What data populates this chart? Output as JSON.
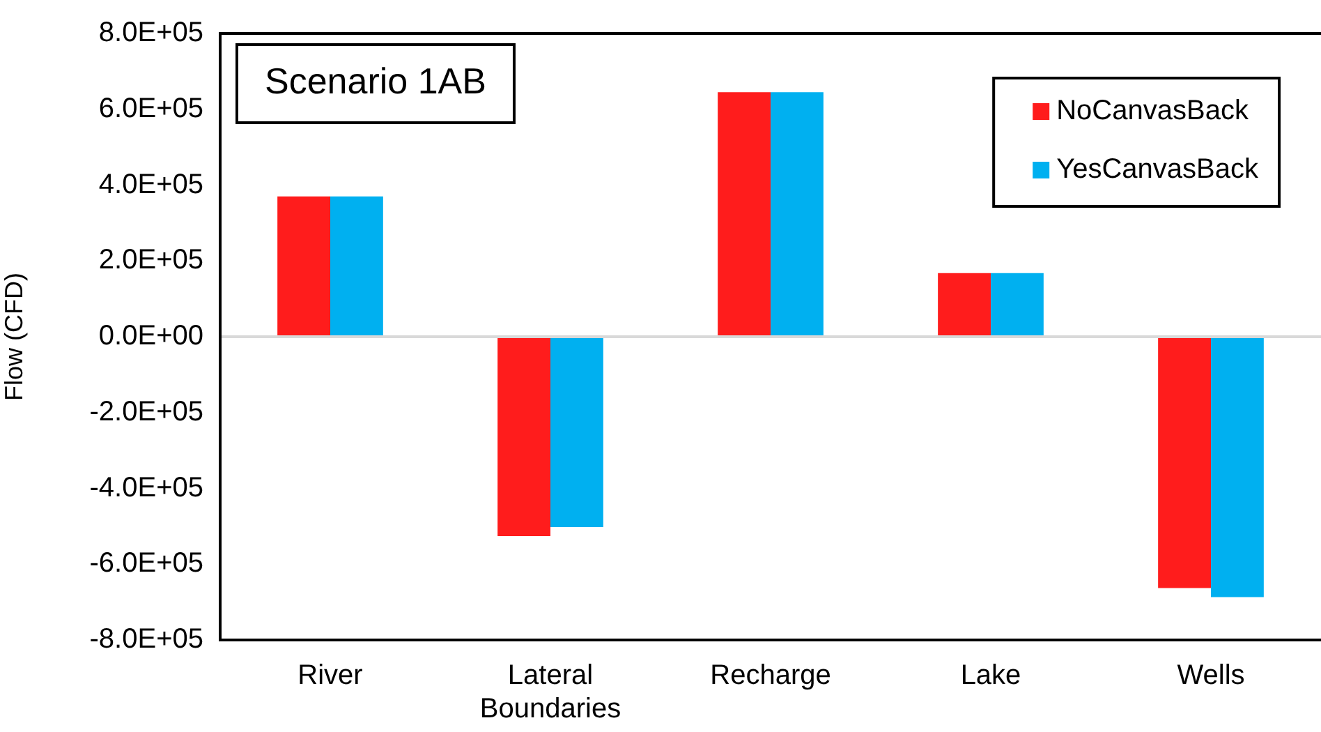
{
  "chart_data": {
    "type": "bar",
    "title": "Scenario 1AB",
    "ylabel": "Flow (CFD)",
    "categories": [
      "River",
      "Lateral Boundaries",
      "Recharge",
      "Lake",
      "Wells"
    ],
    "series": [
      {
        "name": "NoCanvasBack",
        "color": "#ff1c1c",
        "values": [
          370000,
          -526000,
          645000,
          168000,
          -663000
        ]
      },
      {
        "name": "YesCanvasBack",
        "color": "#00b0f0",
        "values": [
          370000,
          -502000,
          645000,
          168000,
          -687000
        ]
      }
    ],
    "ylim": [
      -800000,
      800000
    ],
    "yticks": [
      {
        "value": -800000,
        "label": "-8.0E+05"
      },
      {
        "value": -600000,
        "label": "-6.0E+05"
      },
      {
        "value": -400000,
        "label": "-4.0E+05"
      },
      {
        "value": -200000,
        "label": "-2.0E+05"
      },
      {
        "value": 0,
        "label": "0.0E+00"
      },
      {
        "value": 200000,
        "label": "2.0E+05"
      },
      {
        "value": 400000,
        "label": "4.0E+05"
      },
      {
        "value": 600000,
        "label": "6.0E+05"
      },
      {
        "value": 800000,
        "label": "8.0E+05"
      }
    ],
    "ref_lines": [
      {
        "axis": "y",
        "value": 0,
        "color": "#d9d9d9"
      }
    ],
    "grid": false,
    "legend": "top right"
  }
}
